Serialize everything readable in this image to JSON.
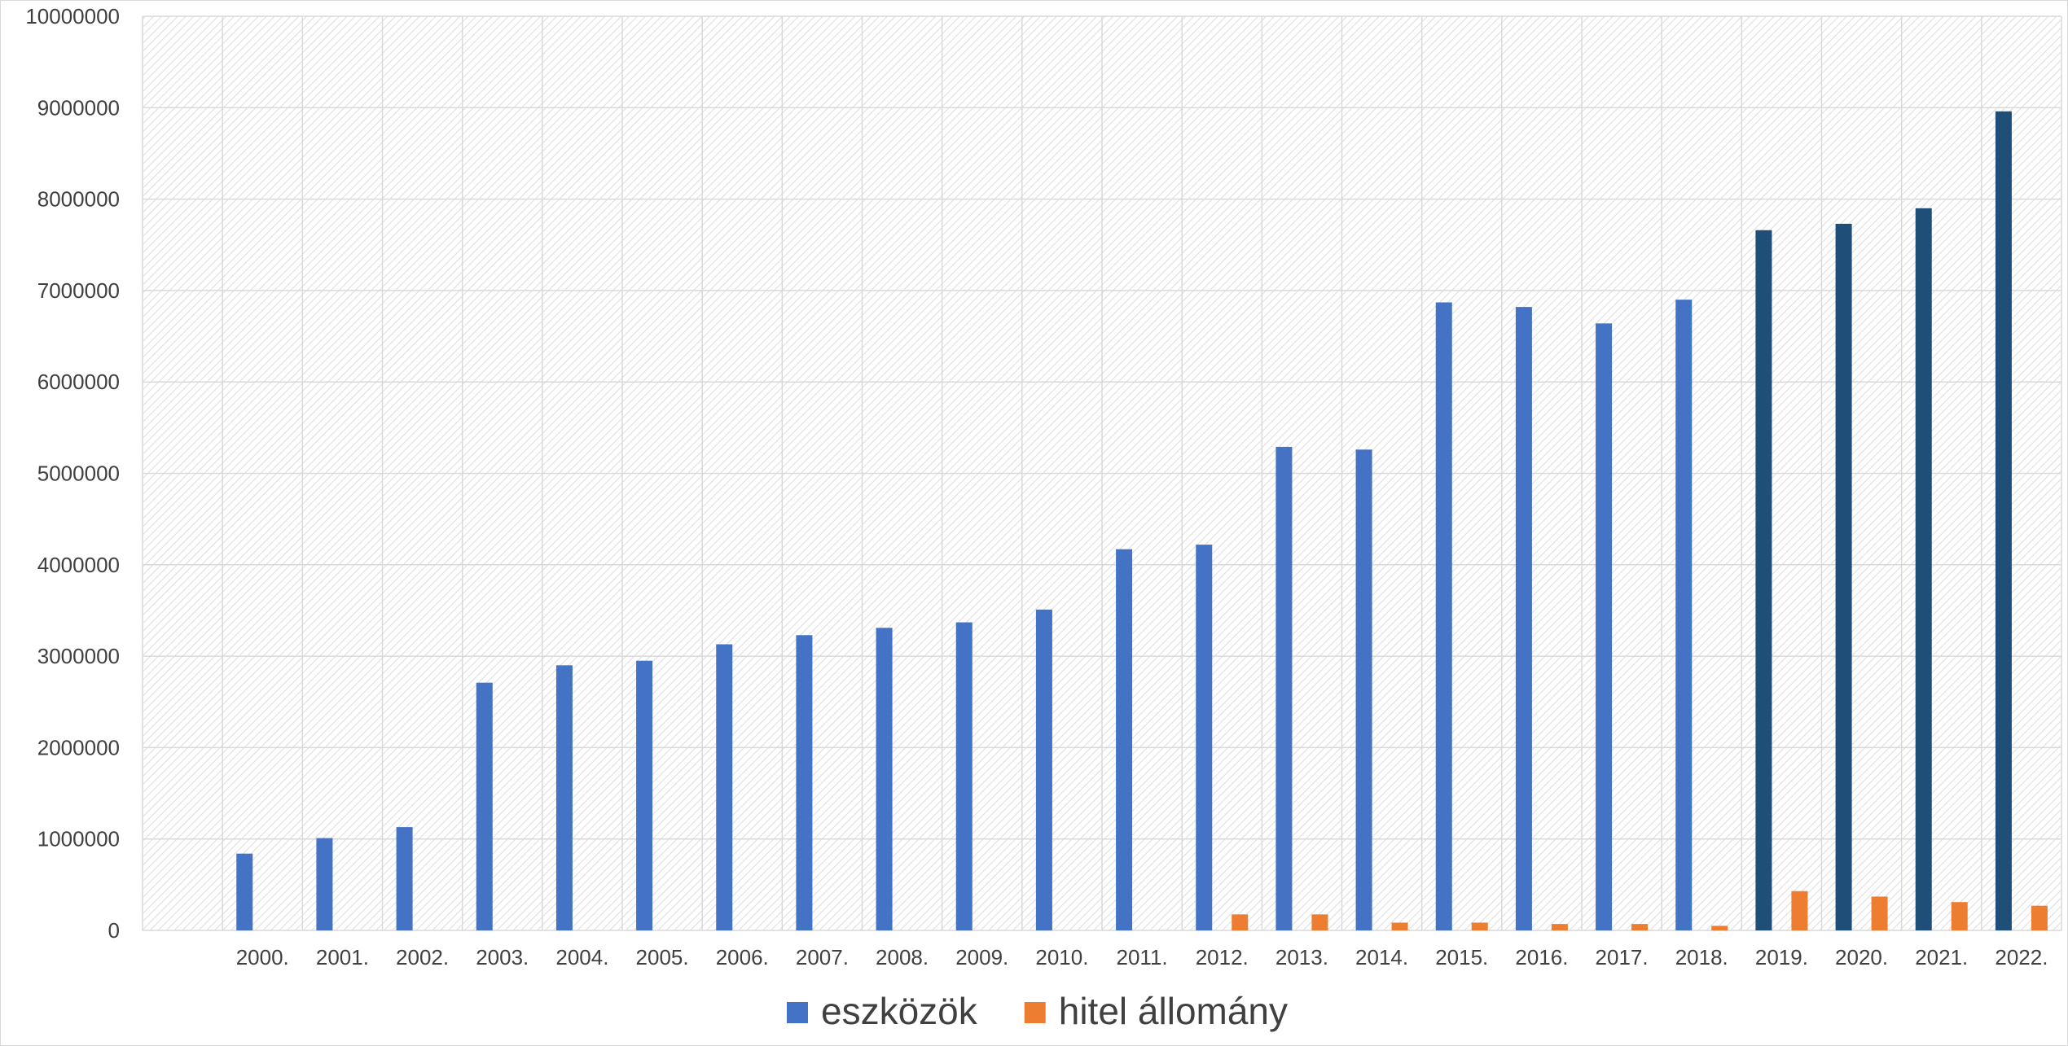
{
  "chart_data": {
    "type": "bar",
    "categories": [
      "2000.",
      "2001.",
      "2002.",
      "2003.",
      "2004.",
      "2005.",
      "2006.",
      "2007.",
      "2008.",
      "2009.",
      "2010.",
      "2011.",
      "2012.",
      "2013.",
      "2014.",
      "2015.",
      "2016.",
      "2017.",
      "2018.",
      "2019.",
      "2020.",
      "2021.",
      "2022."
    ],
    "series": [
      {
        "name": "eszközök",
        "color": "#4472c4",
        "highlight_color": "#1f4e79",
        "values": [
          840000,
          1010000,
          1130000,
          2710000,
          2900000,
          2950000,
          3130000,
          3230000,
          3310000,
          3370000,
          3510000,
          4170000,
          4220000,
          5290000,
          5260000,
          6870000,
          6820000,
          6640000,
          6900000,
          7660000,
          7730000,
          7900000,
          8960000
        ]
      },
      {
        "name": "hitel állomány",
        "color": "#ed7d31",
        "values": [
          0,
          0,
          0,
          0,
          0,
          0,
          0,
          0,
          0,
          0,
          0,
          0,
          175000,
          175000,
          85000,
          85000,
          70000,
          70000,
          50000,
          430000,
          370000,
          310000,
          270000
        ]
      }
    ],
    "highlighted_categories": [
      "2019.",
      "2020.",
      "2021.",
      "2022."
    ],
    "ylim": [
      0,
      10000000
    ],
    "yticks": [
      "0",
      "1000000",
      "2000000",
      "3000000",
      "4000000",
      "5000000",
      "6000000",
      "7000000",
      "8000000",
      "9000000",
      "10000000"
    ],
    "ytick_values": [
      0,
      1000000,
      2000000,
      3000000,
      4000000,
      5000000,
      6000000,
      7000000,
      8000000,
      9000000,
      10000000
    ],
    "grid": true,
    "legend_position": "bottom",
    "plot_background": "hatched light gray"
  }
}
